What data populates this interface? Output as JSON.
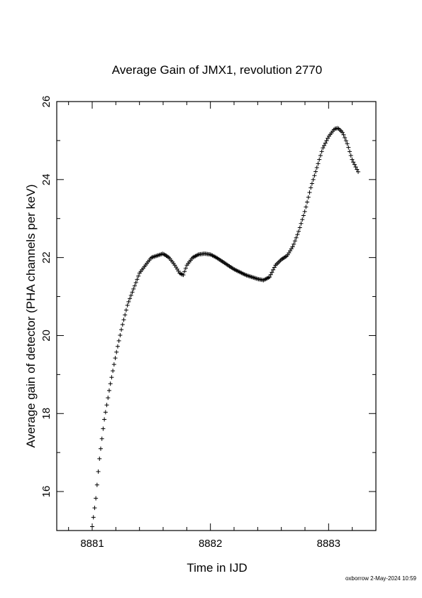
{
  "chart_data": {
    "type": "scatter",
    "title": "Average Gain of JMX1, revolution 2770",
    "xlabel": "Time in IJD",
    "ylabel": "Average gain of detector (PHA channels per keV)",
    "xlim": [
      8880.7,
      8883.4
    ],
    "ylim": [
      15,
      26
    ],
    "xticks": [
      8881,
      8882,
      8883
    ],
    "yticks": [
      16,
      18,
      20,
      22,
      24,
      26
    ],
    "grid": false,
    "marker": "+",
    "series": [
      {
        "x": [
          8881.0,
          8881.03,
          8881.06,
          8881.1,
          8881.15,
          8881.2,
          8881.25,
          8881.3,
          8881.35,
          8881.4,
          8881.45,
          8881.5,
          8881.55,
          8881.6,
          8881.65,
          8881.7,
          8881.74,
          8881.77,
          8881.8,
          8881.85,
          8881.9,
          8881.95,
          8882.0,
          8882.05,
          8882.1,
          8882.2,
          8882.3,
          8882.4,
          8882.45,
          8882.5,
          8882.55,
          8882.6,
          8882.65,
          8882.7,
          8882.75,
          8882.8,
          8882.85,
          8882.9,
          8882.95,
          8883.0,
          8883.05,
          8883.08,
          8883.12,
          8883.16,
          8883.2,
          8883.25
        ],
        "y": [
          15.1,
          15.8,
          16.8,
          17.8,
          18.7,
          19.5,
          20.2,
          20.8,
          21.2,
          21.6,
          21.8,
          22.0,
          22.05,
          22.1,
          22.0,
          21.8,
          21.6,
          21.55,
          21.8,
          22.0,
          22.08,
          22.1,
          22.08,
          22.0,
          21.9,
          21.7,
          21.55,
          21.45,
          21.42,
          21.5,
          21.8,
          21.95,
          22.05,
          22.3,
          22.7,
          23.2,
          23.8,
          24.3,
          24.8,
          25.1,
          25.3,
          25.32,
          25.2,
          24.9,
          24.5,
          24.2
        ]
      }
    ]
  },
  "footer": "oxborrow  2-May-2024 10:59"
}
